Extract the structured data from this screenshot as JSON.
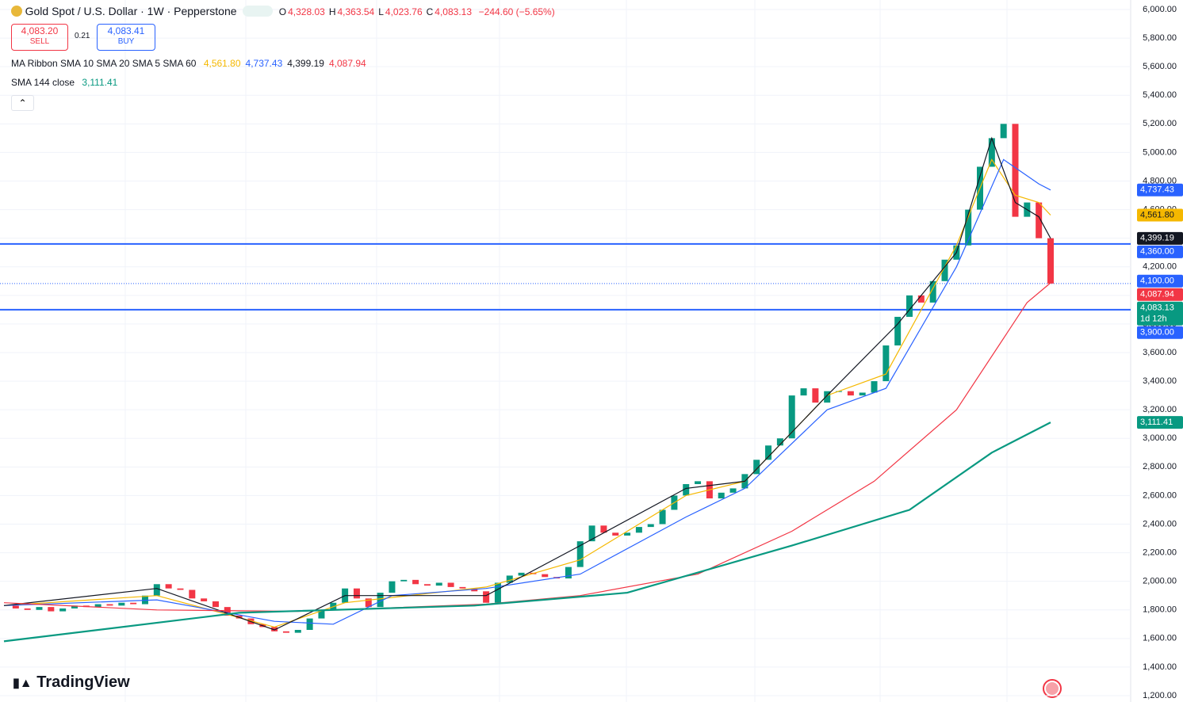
{
  "header": {
    "title": "Gold Spot / U.S. Dollar · 1W · Pepperstone",
    "ohlc": [
      {
        "key": "O",
        "label": "4,328.03"
      },
      {
        "key": "H",
        "label": "4,363.54"
      },
      {
        "key": "L",
        "label": "4,023.76"
      },
      {
        "key": "C",
        "label": "4,083.13"
      }
    ],
    "change": "−244.60 (−5.65%)",
    "sell": {
      "price": "4,083.20",
      "label": "SELL"
    },
    "spread": "0.21",
    "buy": {
      "price": "4,083.41",
      "label": "BUY"
    },
    "logo": "TradingView"
  },
  "chart_data": {
    "type": "candlestick",
    "ribbon_name": "MA Ribbon SMA 10 SMA 20 SMA 5 SMA 60",
    "sma144_name": "SMA 144 close",
    "closes": [
      1830,
      1810,
      1800,
      1820,
      1790,
      1810,
      1830,
      1820,
      1840,
      1830,
      1850,
      1840,
      1900,
      1980,
      1950,
      1940,
      1880,
      1860,
      1820,
      1760,
      1740,
      1700,
      1680,
      1650,
      1640,
      1660,
      1740,
      1800,
      1850,
      1950,
      1880,
      1820,
      1920,
      2000,
      2010,
      1980,
      1970,
      1990,
      1960,
      1950,
      1930,
      1850,
      1990,
      2040,
      2060,
      2050,
      2030,
      2020,
      2100,
      2280,
      2390,
      2340,
      2320,
      2340,
      2380,
      2400,
      2500,
      2600,
      2680,
      2700,
      2580,
      2620,
      2650,
      2750,
      2850,
      2950,
      3000,
      3300,
      3350,
      3250,
      3330,
      3330,
      3300,
      3320,
      3400,
      3650,
      3850,
      4000,
      3950,
      4100,
      4250,
      4350,
      4600,
      4900,
      5100,
      5200,
      4550,
      4650,
      4400,
      4083.13
    ],
    "up_color": "#089981",
    "down_color": "#f23645",
    "series": [
      {
        "name": "SMA 10",
        "color": "#f5b800",
        "price_label": "4,561.80",
        "x": [
          0,
          13,
          23,
          29,
          41,
          49,
          58,
          63,
          70,
          75,
          81,
          84,
          86,
          88,
          89
        ],
        "values": [
          1830,
          1900,
          1680,
          1850,
          1960,
          2150,
          2600,
          2700,
          3300,
          3450,
          4350,
          4950,
          4700,
          4650,
          4561.8
        ]
      },
      {
        "name": "SMA 20",
        "color": "#2962ff",
        "price_label": "4,737.43",
        "x": [
          0,
          13,
          23,
          28,
          33,
          41,
          49,
          58,
          63,
          70,
          75,
          81,
          85,
          88,
          89
        ],
        "values": [
          1830,
          1870,
          1720,
          1700,
          1900,
          1950,
          2050,
          2450,
          2650,
          3200,
          3350,
          4200,
          4950,
          4780,
          4737.43
        ]
      },
      {
        "name": "SMA 5",
        "color": "#131722",
        "price_label": "4,399.19",
        "x": [
          0,
          13,
          23,
          29,
          41,
          49,
          58,
          63,
          70,
          76,
          81,
          84,
          86,
          88,
          89
        ],
        "values": [
          1830,
          1950,
          1660,
          1900,
          1900,
          2250,
          2650,
          2700,
          3300,
          3800,
          4300,
          5100,
          4650,
          4550,
          4399.19
        ]
      },
      {
        "name": "SMA 60",
        "color": "#f23645",
        "price_label": "4,087.94",
        "x": [
          0,
          13,
          25,
          41,
          49,
          59,
          67,
          74,
          81,
          85,
          87,
          89
        ],
        "values": [
          1850,
          1800,
          1790,
          1840,
          1900,
          2050,
          2350,
          2700,
          3200,
          3700,
          3950,
          4087.94
        ]
      },
      {
        "name": "SMA 144",
        "color": "#089981",
        "price_label": "3,111.41",
        "x": [
          0,
          20,
          40,
          53,
          67,
          77,
          84,
          89
        ],
        "values": [
          1580,
          1780,
          1830,
          1920,
          2250,
          2500,
          2900,
          3111.41
        ]
      }
    ],
    "levels": [
      {
        "value": 4360,
        "label": "4,360.00"
      },
      {
        "value": 3900,
        "label": "3,900.00"
      }
    ],
    "level_color": "#2962ff",
    "alert": {
      "value": 4100,
      "label": "4,100.00"
    },
    "last_price": 4083.13,
    "countdown": "1d 12h",
    "ylim": [
      1200,
      6000
    ],
    "yticks": [
      {
        "value": 6000,
        "label": "6,000.00"
      },
      {
        "value": 5800,
        "label": "5,800.00"
      },
      {
        "value": 5600,
        "label": "5,600.00"
      },
      {
        "value": 5400,
        "label": "5,400.00"
      },
      {
        "value": 5200,
        "label": "5,200.00"
      },
      {
        "value": 5000,
        "label": "5,000.00"
      },
      {
        "value": 4800,
        "label": "4,800.00"
      },
      {
        "value": 4600,
        "label": "4,600.00"
      },
      {
        "value": 4400,
        "label": "4,400.00"
      },
      {
        "value": 4200,
        "label": "4,200.00"
      },
      {
        "value": 4000,
        "label": "4,000.00"
      },
      {
        "value": 3800,
        "label": "3,800.00"
      },
      {
        "value": 3600,
        "label": "3,600.00"
      },
      {
        "value": 3400,
        "label": "3,400.00"
      },
      {
        "value": 3200,
        "label": "3,200.00"
      },
      {
        "value": 3000,
        "label": "3,000.00"
      },
      {
        "value": 2800,
        "label": "2,800.00"
      },
      {
        "value": 2600,
        "label": "2,600.00"
      },
      {
        "value": 2400,
        "label": "2,400.00"
      },
      {
        "value": 2200,
        "label": "2,200.00"
      },
      {
        "value": 2000,
        "label": "2,000.00"
      },
      {
        "value": 1800,
        "label": "1,800.00"
      },
      {
        "value": 1600,
        "label": "1,600.00"
      },
      {
        "value": 1400,
        "label": "1,400.00"
      },
      {
        "value": 1200,
        "label": "1,200.00"
      }
    ],
    "grid": true
  }
}
